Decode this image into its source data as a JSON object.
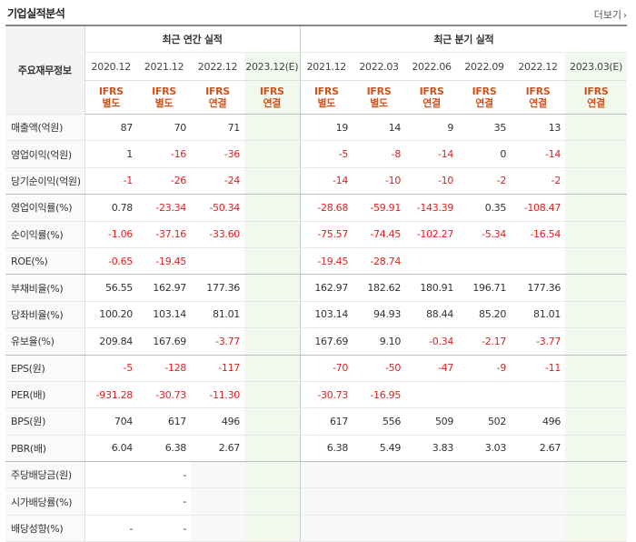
{
  "header": {
    "title": "기업실적분석",
    "more_label": "더보기"
  },
  "table": {
    "corner": "주요재무정보",
    "group_annual": "최근 연간 실적",
    "group_quarter": "최근 분기 실적",
    "periods": [
      {
        "label": "2020.12",
        "std1": "IFRS",
        "std2": "별도",
        "est": false
      },
      {
        "label": "2021.12",
        "std1": "IFRS",
        "std2": "별도",
        "est": false
      },
      {
        "label": "2022.12",
        "std1": "IFRS",
        "std2": "연결",
        "est": false
      },
      {
        "label": "2023.12(E)",
        "std1": "IFRS",
        "std2": "연결",
        "est": true
      },
      {
        "label": "2021.12",
        "std1": "IFRS",
        "std2": "별도",
        "est": false
      },
      {
        "label": "2022.03",
        "std1": "IFRS",
        "std2": "별도",
        "est": false
      },
      {
        "label": "2022.06",
        "std1": "IFRS",
        "std2": "연결",
        "est": false
      },
      {
        "label": "2022.09",
        "std1": "IFRS",
        "std2": "연결",
        "est": false
      },
      {
        "label": "2022.12",
        "std1": "IFRS",
        "std2": "연결",
        "est": false
      },
      {
        "label": "2023.03(E)",
        "std1": "IFRS",
        "std2": "연결",
        "est": true
      }
    ],
    "rows": [
      {
        "label": "매출액(억원)",
        "values": [
          "87",
          "70",
          "71",
          "",
          "19",
          "14",
          "9",
          "35",
          "13",
          ""
        ]
      },
      {
        "label": "영업이익(억원)",
        "values": [
          "1",
          "-16",
          "-36",
          "",
          "-5",
          "-8",
          "-14",
          "0",
          "-14",
          ""
        ]
      },
      {
        "label": "당기순이익(억원)",
        "values": [
          "-1",
          "-26",
          "-24",
          "",
          "-14",
          "-10",
          "-10",
          "-2",
          "-2",
          ""
        ],
        "group_end": true
      },
      {
        "label": "영업이익률(%)",
        "values": [
          "0.78",
          "-23.34",
          "-50.34",
          "",
          "-28.68",
          "-59.91",
          "-143.39",
          "0.35",
          "-108.47",
          ""
        ]
      },
      {
        "label": "순이익률(%)",
        "values": [
          "-1.06",
          "-37.16",
          "-33.60",
          "",
          "-75.57",
          "-74.45",
          "-102.27",
          "-5.34",
          "-16.54",
          ""
        ]
      },
      {
        "label": "ROE(%)",
        "values": [
          "-0.65",
          "-19.45",
          "",
          "",
          "-19.45",
          "-28.74",
          "",
          "",
          "",
          ""
        ],
        "group_end": true
      },
      {
        "label": "부채비율(%)",
        "values": [
          "56.55",
          "162.97",
          "177.36",
          "",
          "162.97",
          "182.62",
          "180.91",
          "196.71",
          "177.36",
          ""
        ]
      },
      {
        "label": "당좌비율(%)",
        "values": [
          "100.20",
          "103.14",
          "81.01",
          "",
          "103.14",
          "94.93",
          "88.44",
          "85.20",
          "81.01",
          ""
        ]
      },
      {
        "label": "유보율(%)",
        "values": [
          "209.84",
          "167.69",
          "-3.77",
          "",
          "167.69",
          "9.10",
          "-0.34",
          "-2.17",
          "-3.77",
          ""
        ],
        "group_end": true
      },
      {
        "label": "EPS(원)",
        "values": [
          "-5",
          "-128",
          "-117",
          "",
          "-70",
          "-50",
          "-47",
          "-9",
          "-11",
          ""
        ]
      },
      {
        "label": "PER(배)",
        "values": [
          "-931.28",
          "-30.73",
          "-11.30",
          "",
          "-30.73",
          "-16.95",
          "",
          "",
          "",
          ""
        ]
      },
      {
        "label": "BPS(원)",
        "values": [
          "704",
          "617",
          "496",
          "",
          "617",
          "556",
          "509",
          "502",
          "496",
          ""
        ]
      },
      {
        "label": "PBR(배)",
        "values": [
          "6.04",
          "6.38",
          "2.67",
          "",
          "6.38",
          "5.49",
          "3.83",
          "3.03",
          "2.67",
          ""
        ],
        "group_end": true
      },
      {
        "label": "주당배당금(원)",
        "values": [
          "",
          "-",
          "",
          "",
          "",
          "",
          "",
          "",
          "",
          ""
        ],
        "dividend": true
      },
      {
        "label": "시가배당률(%)",
        "values": [
          "",
          "-",
          "",
          "",
          "",
          "",
          "",
          "",
          "",
          ""
        ],
        "dividend": true
      },
      {
        "label": "배당성향(%)",
        "values": [
          "-",
          "-",
          "",
          "",
          "",
          "",
          "",
          "",
          "",
          ""
        ],
        "dividend": true
      }
    ]
  }
}
